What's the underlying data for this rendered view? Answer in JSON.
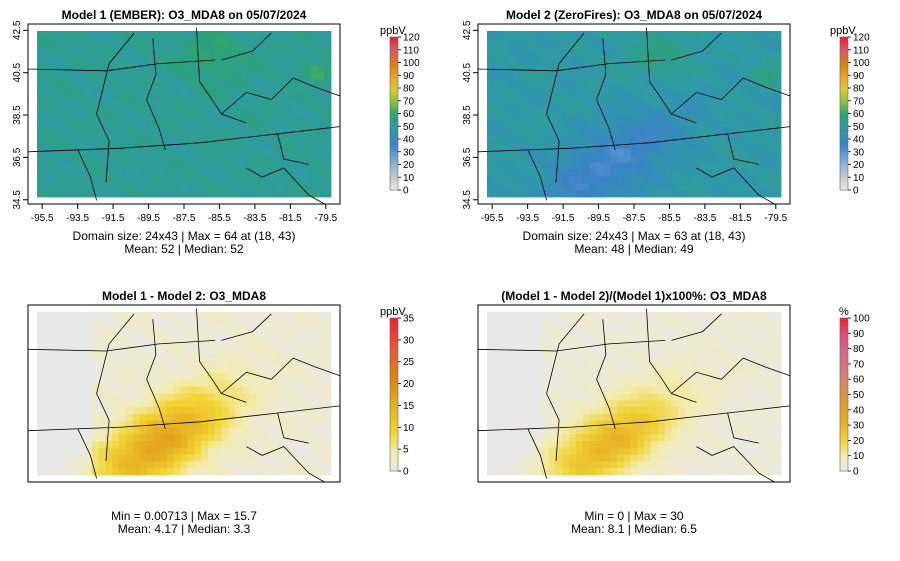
{
  "chart_data": [
    {
      "type": "heatmap",
      "title": "Model 1 (EMBER): O3_MDA8 on 05/07/2024",
      "x_ticks": [
        "-95.5",
        "-93.5",
        "-91.5",
        "-89.5",
        "-87.5",
        "-85.5",
        "-83.5",
        "-81.5",
        "-79.5"
      ],
      "y_ticks": [
        "34.5",
        "36.5",
        "38.5",
        "40.5",
        "42.5"
      ],
      "colorbar_unit": "ppbV",
      "colorbar_ticks": [
        "0",
        "10",
        "20",
        "30",
        "40",
        "50",
        "60",
        "70",
        "80",
        "90",
        "100",
        "110",
        "120"
      ],
      "zlim": [
        0,
        120
      ],
      "stats_line1": "Domain size: 24x43 | Max = 64 at (18, 43)",
      "stats_line2": "Mean: 52 |  Median: 52",
      "max": 64,
      "mean": 52,
      "median": 52
    },
    {
      "type": "heatmap",
      "title": "Model 2 (ZeroFires): O3_MDA8 on 05/07/2024",
      "x_ticks": [
        "-95.5",
        "-93.5",
        "-91.5",
        "-89.5",
        "-87.5",
        "-85.5",
        "-83.5",
        "-81.5",
        "-79.5"
      ],
      "y_ticks": [
        "34.5",
        "36.5",
        "38.5",
        "40.5",
        "42.5"
      ],
      "colorbar_unit": "ppbV",
      "colorbar_ticks": [
        "0",
        "10",
        "20",
        "30",
        "40",
        "50",
        "60",
        "70",
        "80",
        "90",
        "100",
        "110",
        "120"
      ],
      "zlim": [
        0,
        120
      ],
      "stats_line1": "Domain size: 24x43 | Max = 63 at (18, 43)",
      "stats_line2": "Mean: 48 |  Median: 49",
      "max": 63,
      "mean": 48,
      "median": 49
    },
    {
      "type": "heatmap",
      "title": "Model 1 - Model 2: O3_MDA8",
      "colorbar_unit": "ppbV",
      "colorbar_ticks": [
        "0",
        "5",
        "10",
        "15",
        "20",
        "25",
        "30",
        "35"
      ],
      "zlim": [
        0,
        35
      ],
      "stats_line1": "Min = 0.00713 | Max = 15.7",
      "stats_line2": "Mean: 4.17 |  Median: 3.3",
      "min": 0.00713,
      "max": 15.7,
      "mean": 4.17,
      "median": 3.3
    },
    {
      "type": "heatmap",
      "title": "(Model 1 - Model 2)/(Model 1)x100%: O3_MDA8",
      "colorbar_unit": "%",
      "colorbar_ticks": [
        "0",
        "10",
        "20",
        "30",
        "40",
        "50",
        "60",
        "70",
        "80",
        "90",
        "100"
      ],
      "zlim": [
        0,
        100
      ],
      "stats_line1": "Min = 0 | Max = 30",
      "stats_line2": "Mean: 8.1 |  Median: 6.5",
      "min": 0,
      "max": 30,
      "mean": 8.1,
      "median": 6.5
    }
  ]
}
